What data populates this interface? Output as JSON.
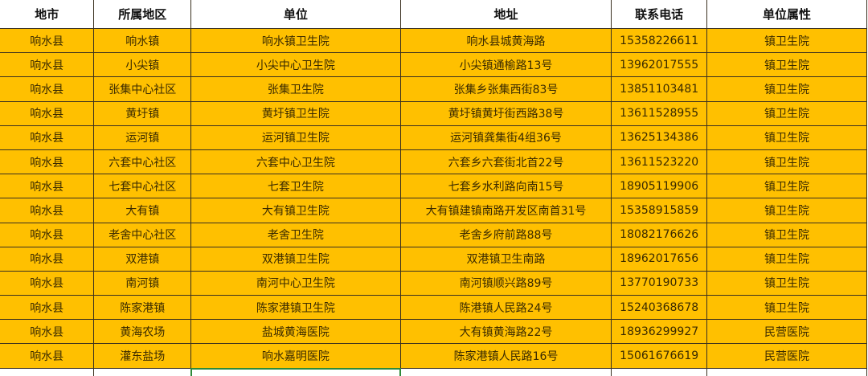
{
  "colors": {
    "row_fill": "#FFC000",
    "header_fill": "#FFFFFF",
    "selection": "#2F8A3A"
  },
  "headers": [
    "地市",
    "所属地区",
    "单位",
    "地址",
    "联系电话",
    "单位属性"
  ],
  "rows": [
    [
      "响水县",
      "响水镇",
      "响水镇卫生院",
      "响水县城黄海路",
      "15358226611",
      "镇卫生院"
    ],
    [
      "响水县",
      "小尖镇",
      "小尖中心卫生院",
      "小尖镇通榆路13号",
      "13962017555",
      "镇卫生院"
    ],
    [
      "响水县",
      "张集中心社区",
      "张集卫生院",
      "张集乡张集西街83号",
      "13851103481",
      "镇卫生院"
    ],
    [
      "响水县",
      "黄圩镇",
      "黄圩镇卫生院",
      "黄圩镇黄圩街西路38号",
      "13611528955",
      "镇卫生院"
    ],
    [
      "响水县",
      "运河镇",
      "运河镇卫生院",
      "运河镇龚集街4组36号",
      "13625134386",
      "镇卫生院"
    ],
    [
      "响水县",
      "六套中心社区",
      "六套中心卫生院",
      "六套乡六套街北首22号",
      "13611523220",
      "镇卫生院"
    ],
    [
      "响水县",
      "七套中心社区",
      "七套卫生院",
      "七套乡水利路向南15号",
      "18905119906",
      "镇卫生院"
    ],
    [
      "响水县",
      "大有镇",
      "大有镇卫生院",
      "大有镇建镇南路开发区南首31号",
      "15358915859",
      "镇卫生院"
    ],
    [
      "响水县",
      "老舍中心社区",
      "老舍卫生院",
      "老舍乡府前路88号",
      "18082176626",
      "镇卫生院"
    ],
    [
      "响水县",
      "双港镇",
      "双港镇卫生院",
      "双港镇卫生南路",
      "18962017656",
      "镇卫生院"
    ],
    [
      "响水县",
      "南河镇",
      "南河中心卫生院",
      "南河镇顺兴路89号",
      "13770190733",
      "镇卫生院"
    ],
    [
      "响水县",
      "陈家港镇",
      "陈家港镇卫生院",
      "陈港镇人民路24号",
      "15240368678",
      "镇卫生院"
    ],
    [
      "响水县",
      "黄海农场",
      "盐城黄海医院",
      "大有镇黄海路22号",
      "18936299927",
      "民营医院"
    ],
    [
      "响水县",
      "灌东盐场",
      "响水嘉明医院",
      "陈家港镇人民路16号",
      "15061676619",
      "民营医院"
    ]
  ]
}
